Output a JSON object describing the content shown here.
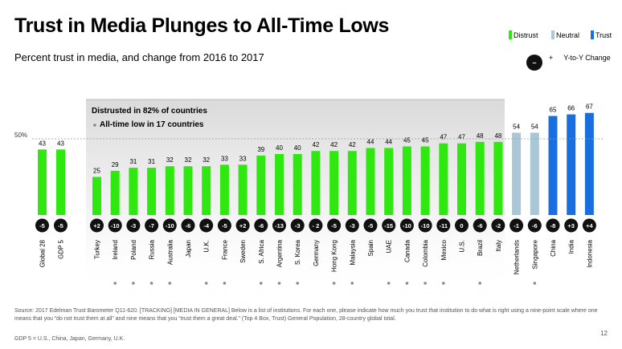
{
  "title": "Trust in Media Plunges to All-Time Lows",
  "subtitle": "Percent trust in media, and change from 2016 to 2017",
  "legend": [
    {
      "label": "Distrust",
      "color": "#2ee80f"
    },
    {
      "label": "Neutral",
      "color": "#a9c7d6"
    },
    {
      "label": "Trust",
      "color": "#1a6fe0"
    }
  ],
  "yoy_legend": {
    "symbol": "–",
    "plus": "+",
    "label": "Y-to-Y Change"
  },
  "callout": {
    "line1": "Distrusted in 82% of countries",
    "line2": "All-time low in 17 countries"
  },
  "footer": {
    "source": "Source: 2017 Edelman Trust Barometer Q11-620. [TRACKING] [MEDIA IN GENERAL] Below is a list of institutions. For each one, please indicate how much you trust that institution to do what is right using a nine-point scale where one means that you “do not trust them at all” and nine means that you “trust them a great deal.” (Top 4 Box, Trust) General Population, 28-country global total.",
    "note": "GDP 5 = U.S., China, Japan, Germany, U.K."
  },
  "page_number": "12",
  "chart_data": {
    "type": "bar",
    "title": "Trust in Media Plunges to All-Time Lows",
    "ylabel": "Percent trust in media",
    "ylim": [
      0,
      100
    ],
    "reference_line": {
      "value": 50,
      "label": "50%"
    },
    "colors": {
      "Distrust": "#2ee80f",
      "Neutral": "#a9c7d6",
      "Trust": "#1a6fe0"
    },
    "categories": [
      "Global 28",
      "GDP 5",
      "Turkey",
      "Ireland",
      "Poland",
      "Russia",
      "Australia",
      "Japan",
      "U.K.",
      "France",
      "Sweden",
      "S. Africa",
      "Argentina",
      "S. Korea",
      "Germany",
      "Hong Kong",
      "Malaysia",
      "Spain",
      "UAE",
      "Canada",
      "Colombia",
      "Mexico",
      "U.S.",
      "Brazil",
      "Italy",
      "Netherlands",
      "Singapore",
      "China",
      "India",
      "Indonesia"
    ],
    "values": [
      43,
      43,
      25,
      29,
      31,
      31,
      32,
      32,
      32,
      33,
      33,
      39,
      40,
      40,
      42,
      42,
      42,
      44,
      44,
      45,
      45,
      47,
      47,
      48,
      48,
      54,
      54,
      65,
      66,
      67
    ],
    "value_labels": [
      "43",
      "43",
      "25",
      "29",
      "31",
      "31",
      "32",
      "32",
      "32",
      "33",
      "33",
      "39",
      "40",
      "40",
      "42",
      "42",
      "42",
      "44",
      "44",
      "45",
      "45",
      "47",
      "47",
      "48",
      "48",
      "54",
      "54",
      "65",
      "66",
      "67"
    ],
    "group": [
      "Distrust",
      "Distrust",
      "Distrust",
      "Distrust",
      "Distrust",
      "Distrust",
      "Distrust",
      "Distrust",
      "Distrust",
      "Distrust",
      "Distrust",
      "Distrust",
      "Distrust",
      "Distrust",
      "Distrust",
      "Distrust",
      "Distrust",
      "Distrust",
      "Distrust",
      "Distrust",
      "Distrust",
      "Distrust",
      "Distrust",
      "Distrust",
      "Distrust",
      "Neutral",
      "Neutral",
      "Trust",
      "Trust",
      "Trust"
    ],
    "change_labels": [
      "-5",
      "-5",
      "+2",
      "-10",
      "-3",
      "-7",
      "-10",
      "-6",
      "-4",
      "-5",
      "+2",
      "-6",
      "-13",
      "-3",
      "- 2",
      "-5",
      "-3",
      "-5",
      "-15",
      "-10",
      "-10",
      "-11",
      "0",
      "-6",
      "-2",
      "-1",
      "-6",
      "-8",
      "+3",
      "+4"
    ],
    "all_time_low": [
      false,
      false,
      false,
      true,
      true,
      true,
      true,
      false,
      true,
      true,
      false,
      true,
      true,
      true,
      false,
      true,
      true,
      false,
      true,
      true,
      true,
      true,
      false,
      true,
      false,
      false,
      true,
      false,
      false,
      false
    ]
  }
}
